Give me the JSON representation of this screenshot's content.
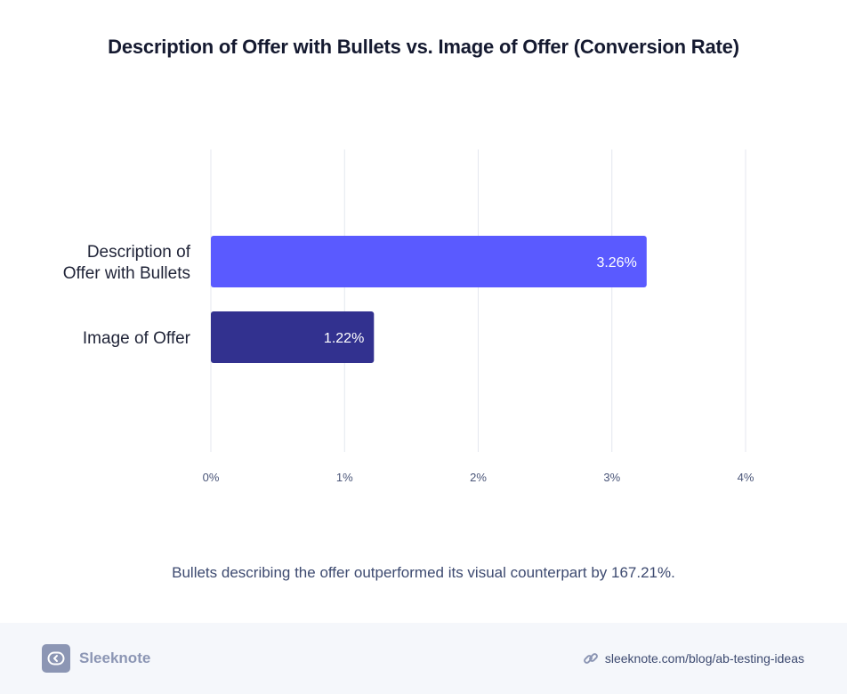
{
  "chart_data": {
    "type": "bar",
    "orientation": "horizontal",
    "title": "Description of Offer with Bullets vs. Image of Offer (Conversion Rate)",
    "categories": [
      "Description of\nOffer with Bullets",
      "Image of Offer"
    ],
    "values": [
      3.26,
      1.22
    ],
    "value_labels": [
      "3.26%",
      "1.22%"
    ],
    "colors": [
      "#5a5aff",
      "#32318f"
    ],
    "xlim": [
      0,
      4
    ],
    "x_ticks": [
      0,
      1,
      2,
      3,
      4
    ],
    "x_tick_labels": [
      "0%",
      "1%",
      "2%",
      "3%",
      "4%"
    ],
    "grid": true,
    "xlabel": "",
    "ylabel": ""
  },
  "caption": "Bullets describing the offer outperformed its visual counterpart by 167.21%.",
  "footer": {
    "brand": "Sleeknote",
    "brand_icon": "sleeknote-logo-icon",
    "link_icon": "link-icon",
    "link_text": "sleeknote.com/blog/ab-testing-ideas"
  }
}
